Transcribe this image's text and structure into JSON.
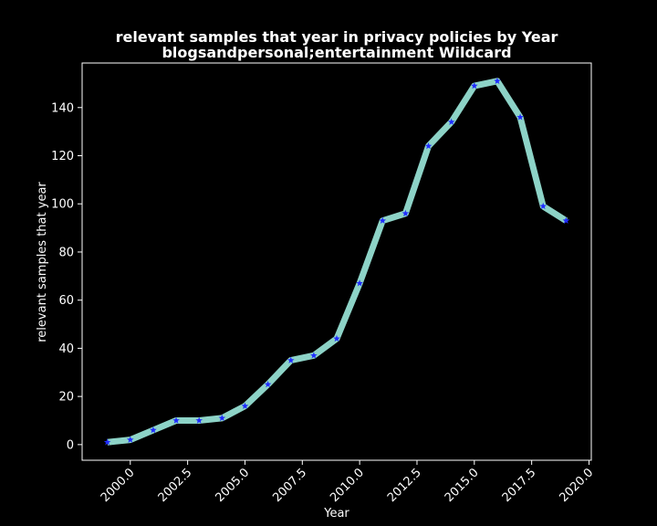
{
  "chart_data": {
    "type": "line",
    "title_line1": "relevant samples that year in privacy policies by Year",
    "title_line2": "blogsandpersonal;entertainment Wildcard",
    "xlabel": "Year",
    "ylabel": "relevant samples that year",
    "xlim": [
      1997.9,
      2020.1
    ],
    "ylim": [
      -6.5,
      158.5
    ],
    "x_ticks": [
      2000.0,
      2002.5,
      2005.0,
      2007.5,
      2010.0,
      2012.5,
      2015.0,
      2017.5,
      2020.0
    ],
    "x_tick_labels": [
      "2000.0",
      "2002.5",
      "2005.0",
      "2007.5",
      "2010.0",
      "2012.5",
      "2015.0",
      "2017.5",
      "2020.0"
    ],
    "y_ticks": [
      0,
      20,
      40,
      60,
      80,
      100,
      120,
      140
    ],
    "y_tick_labels": [
      "0",
      "20",
      "40",
      "60",
      "80",
      "100",
      "120",
      "140"
    ],
    "grid": false,
    "series": [
      {
        "x": [
          1999,
          2000,
          2001,
          2002,
          2003,
          2004,
          2005,
          2006,
          2007,
          2008,
          2009,
          2010,
          2011,
          2012,
          2013,
          2014,
          2015,
          2016,
          2017,
          2018,
          2019
        ],
        "values": [
          1,
          2,
          6,
          10,
          10,
          11,
          16,
          25,
          35,
          37,
          44,
          67,
          93,
          96,
          124,
          134,
          149,
          151,
          136,
          99,
          93
        ],
        "line_color": "#8dd3c7",
        "marker_color": "#1f2bff",
        "marker": "star"
      }
    ],
    "colors": {
      "background": "#000000",
      "axes": "#ffffff",
      "text": "#ffffff"
    }
  }
}
